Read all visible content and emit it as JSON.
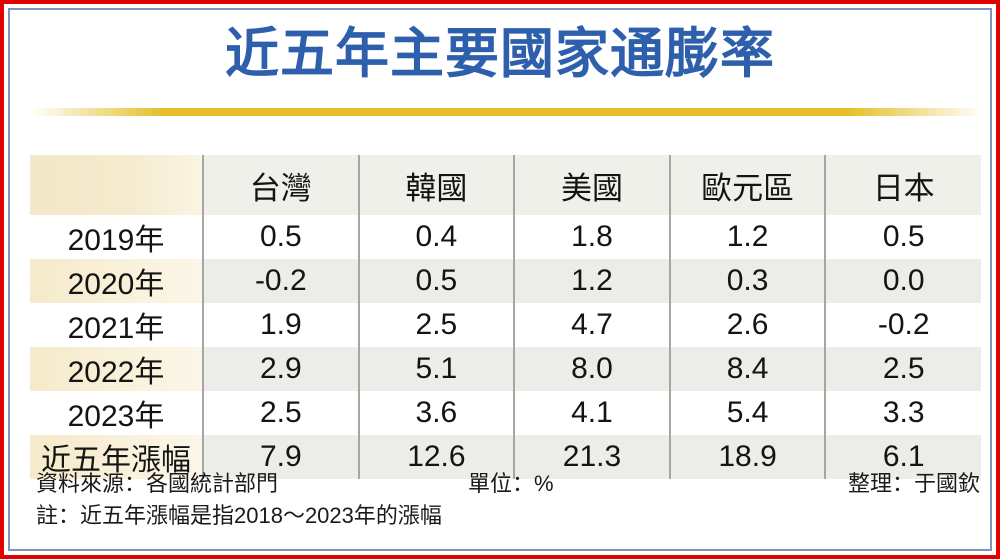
{
  "title": "近五年主要國家通膨率",
  "table": {
    "columns": [
      "台灣",
      "韓國",
      "美國",
      "歐元區",
      "日本"
    ],
    "rows": [
      {
        "label": "2019年",
        "values": [
          "0.5",
          "0.4",
          "1.8",
          "1.2",
          "0.5"
        ]
      },
      {
        "label": "2020年",
        "values": [
          "-0.2",
          "0.5",
          "1.2",
          "0.3",
          "0.0"
        ]
      },
      {
        "label": "2021年",
        "values": [
          "1.9",
          "2.5",
          "4.7",
          "2.6",
          "-0.2"
        ]
      },
      {
        "label": "2022年",
        "values": [
          "2.9",
          "5.1",
          "8.0",
          "8.4",
          "2.5"
        ]
      },
      {
        "label": "2023年",
        "values": [
          "2.5",
          "3.6",
          "4.1",
          "5.4",
          "3.3"
        ]
      },
      {
        "label": "近五年漲幅",
        "values": [
          "7.9",
          "12.6",
          "21.3",
          "18.9",
          "6.1"
        ]
      }
    ]
  },
  "footer": {
    "source": "資料來源：各國統計部門",
    "unit": "單位：%",
    "editor": "整理：于國欽",
    "note": "註：近五年漲幅是指2018～2023年的漲幅"
  },
  "colors": {
    "outer_border_red": "#e30000",
    "inner_border_blue": "#8095b5",
    "title_blue": "#2e5fac",
    "gold_rule": "#e3c02a",
    "header_bg": "#f0f0eb",
    "stripe_bg": "#ecece8",
    "cream_cell": "#f5eaca",
    "divider_gray": "#a6a6a3",
    "text": "#141414"
  },
  "chart_data": {
    "type": "table",
    "title": "近五年主要國家通膨率",
    "categories": [
      "台灣",
      "韓國",
      "美國",
      "歐元區",
      "日本"
    ],
    "series": [
      {
        "name": "2019年",
        "values": [
          0.5,
          0.4,
          1.8,
          1.2,
          0.5
        ]
      },
      {
        "name": "2020年",
        "values": [
          -0.2,
          0.5,
          1.2,
          0.3,
          0.0
        ]
      },
      {
        "name": "2021年",
        "values": [
          1.9,
          2.5,
          4.7,
          2.6,
          -0.2
        ]
      },
      {
        "name": "2022年",
        "values": [
          2.9,
          5.1,
          8.0,
          8.4,
          2.5
        ]
      },
      {
        "name": "2023年",
        "values": [
          2.5,
          3.6,
          4.1,
          5.4,
          3.3
        ]
      },
      {
        "name": "近五年漲幅",
        "values": [
          7.9,
          12.6,
          21.3,
          18.9,
          6.1
        ]
      }
    ],
    "unit": "%",
    "notes": "近五年漲幅是指2018～2023年的漲幅"
  }
}
